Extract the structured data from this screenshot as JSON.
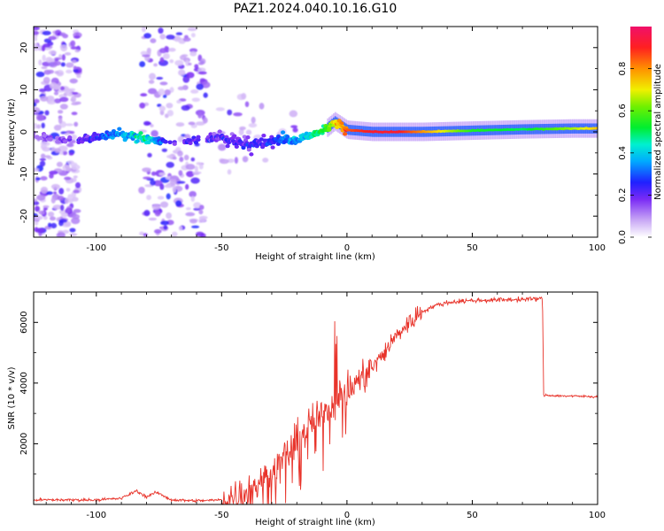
{
  "figure": {
    "title": "PAZ1.2024.040.10.16.G10"
  },
  "chart_data": [
    {
      "type": "heatmap",
      "xlabel": "Height of straight line (km)",
      "ylabel": "Frequency (Hz)",
      "xlim": [
        -125,
        100
      ],
      "ylim": [
        -25,
        25
      ],
      "xticks": [
        "-100",
        "-50",
        "0",
        "50",
        "100"
      ],
      "xtick_values": [
        -100,
        -50,
        0,
        50,
        100
      ],
      "yticks": [
        "-20",
        "-10",
        "0",
        "10",
        "20"
      ],
      "ytick_values": [
        -20,
        -10,
        0,
        10,
        20
      ],
      "colorbar": {
        "label": "Normalized spectral amplitude",
        "ticks": [
          "0.0",
          "0.2",
          "0.4",
          "0.6",
          "0.8"
        ],
        "tick_values": [
          0.0,
          0.2,
          0.4,
          0.6,
          0.8
        ],
        "range": [
          0,
          1
        ]
      },
      "ridge": {
        "x": [
          -125,
          -110,
          -100,
          -90,
          -80,
          -70,
          -50,
          -40,
          -30,
          -20,
          -10,
          -5,
          0,
          10,
          20,
          30,
          50,
          70,
          90,
          100
        ],
        "frequency": [
          -1.0,
          -2.0,
          -1.5,
          -0.5,
          -1.5,
          -2.5,
          -1.5,
          -3.0,
          -2.5,
          -2.0,
          0.0,
          2.5,
          0.5,
          0.0,
          0.0,
          0.0,
          0.3,
          0.6,
          0.8,
          0.8
        ],
        "amplitude": [
          0.1,
          0.15,
          0.25,
          0.35,
          0.45,
          0.2,
          0.2,
          0.2,
          0.25,
          0.35,
          0.5,
          0.7,
          0.85,
          0.92,
          0.92,
          0.8,
          0.55,
          0.5,
          0.65,
          0.75
        ]
      }
    },
    {
      "type": "line",
      "xlabel": "Height of straight line (km)",
      "ylabel": "SNR (10 * v/v)",
      "xlim": [
        -125,
        100
      ],
      "ylim": [
        0,
        7000
      ],
      "xticks": [
        "-100",
        "-50",
        "0",
        "50",
        "100"
      ],
      "xtick_values": [
        -100,
        -50,
        0,
        50,
        100
      ],
      "yticks": [
        "2000",
        "4000",
        "6000"
      ],
      "ytick_values": [
        2000,
        4000,
        6000
      ],
      "color": "#e8332a",
      "trend": {
        "x": [
          -125,
          -100,
          -90,
          -84,
          -80,
          -76,
          -70,
          -60,
          -50,
          -45,
          -40,
          -35,
          -30,
          -25,
          -20,
          -15,
          -10,
          -5,
          0,
          5,
          10,
          15,
          20,
          25,
          30,
          35,
          40,
          45,
          50,
          60,
          70,
          78,
          78.5,
          85,
          90,
          100
        ],
        "snr": [
          150,
          150,
          200,
          450,
          250,
          400,
          150,
          120,
          150,
          250,
          400,
          700,
          1100,
          1500,
          2100,
          2600,
          3000,
          3400,
          3700,
          4100,
          4500,
          5000,
          5600,
          6000,
          6350,
          6550,
          6650,
          6700,
          6720,
          6740,
          6760,
          6780,
          3600,
          3580,
          3570,
          3550
        ]
      }
    }
  ]
}
